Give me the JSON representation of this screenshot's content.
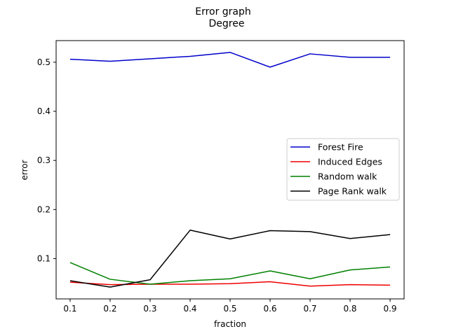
{
  "chart_data": {
    "type": "line",
    "title": "Error graph",
    "subtitle": "Degree",
    "xlabel": "fraction",
    "ylabel": "error",
    "x": [
      0.1,
      0.2,
      0.3,
      0.4,
      0.5,
      0.6,
      0.7,
      0.8,
      0.9
    ],
    "x_ticks": [
      "0.1",
      "0.2",
      "0.3",
      "0.4",
      "0.5",
      "0.6",
      "0.7",
      "0.8",
      "0.9"
    ],
    "y_ticks": [
      "0.1",
      "0.2",
      "0.3",
      "0.4",
      "0.5"
    ],
    "xlim": [
      0.065,
      0.935
    ],
    "ylim": [
      0.018,
      0.544
    ],
    "grid": false,
    "legend_position": "center-right",
    "series": [
      {
        "name": "Forest Fire",
        "color": "#0000cc",
        "values": [
          0.506,
          0.502,
          0.507,
          0.512,
          0.52,
          0.49,
          0.517,
          0.51,
          0.51
        ]
      },
      {
        "name": "Induced Edges",
        "color": "#ee0000",
        "values": [
          0.052,
          0.047,
          0.048,
          0.048,
          0.049,
          0.053,
          0.044,
          0.047,
          0.046
        ]
      },
      {
        "name": "Random walk",
        "color": "#008000",
        "values": [
          0.092,
          0.058,
          0.048,
          0.055,
          0.059,
          0.075,
          0.059,
          0.077,
          0.083
        ]
      },
      {
        "name": "Page Rank walk",
        "color": "#000000",
        "values": [
          0.055,
          0.042,
          0.057,
          0.158,
          0.14,
          0.157,
          0.155,
          0.141,
          0.149
        ]
      }
    ]
  }
}
